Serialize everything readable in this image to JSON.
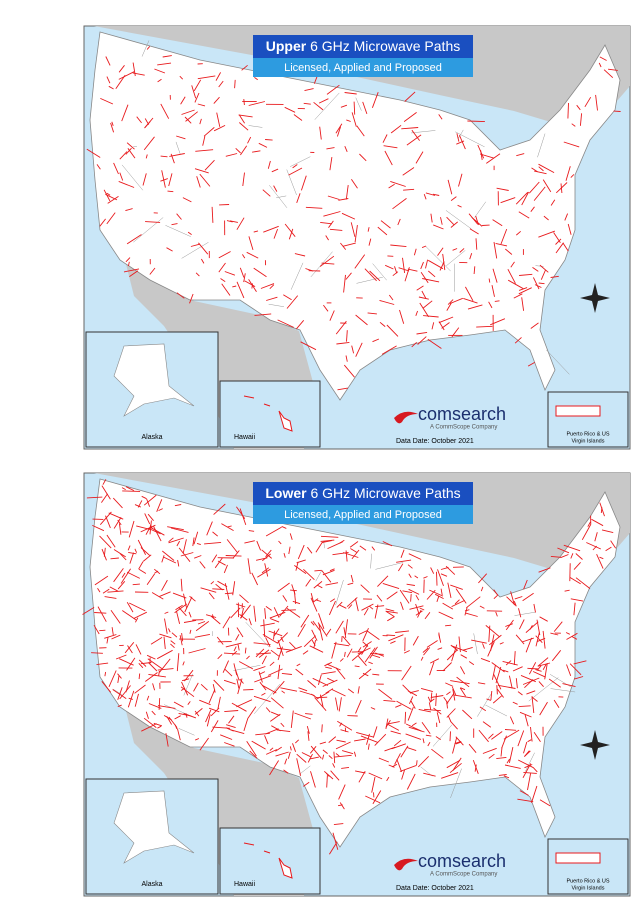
{
  "maps": [
    {
      "title_bold": "Upper",
      "title_rest": "6 GHz Microwave Paths",
      "subtitle": "Licensed, Applied and Proposed",
      "insets": {
        "alaska": "Alaska",
        "hawaii": "Hawaii",
        "puerto_rico": [
          "Puerto Rico & US",
          "Virgin Islands"
        ]
      },
      "logo": {
        "name": "comsearch",
        "tagline": "A CommScope Company"
      },
      "data_date": "Data Date: October 2021"
    },
    {
      "title_bold": "Lower",
      "title_rest": "6 GHz Microwave Paths",
      "subtitle": "Licensed, Applied and Proposed",
      "insets": {
        "alaska": "Alaska",
        "hawaii": "Hawaii",
        "puerto_rico": [
          "Puerto Rico & US",
          "Virgin Islands"
        ]
      },
      "logo": {
        "name": "comsearch",
        "tagline": "A CommScope Company"
      },
      "data_date": "Data Date: October 2021"
    }
  ]
}
